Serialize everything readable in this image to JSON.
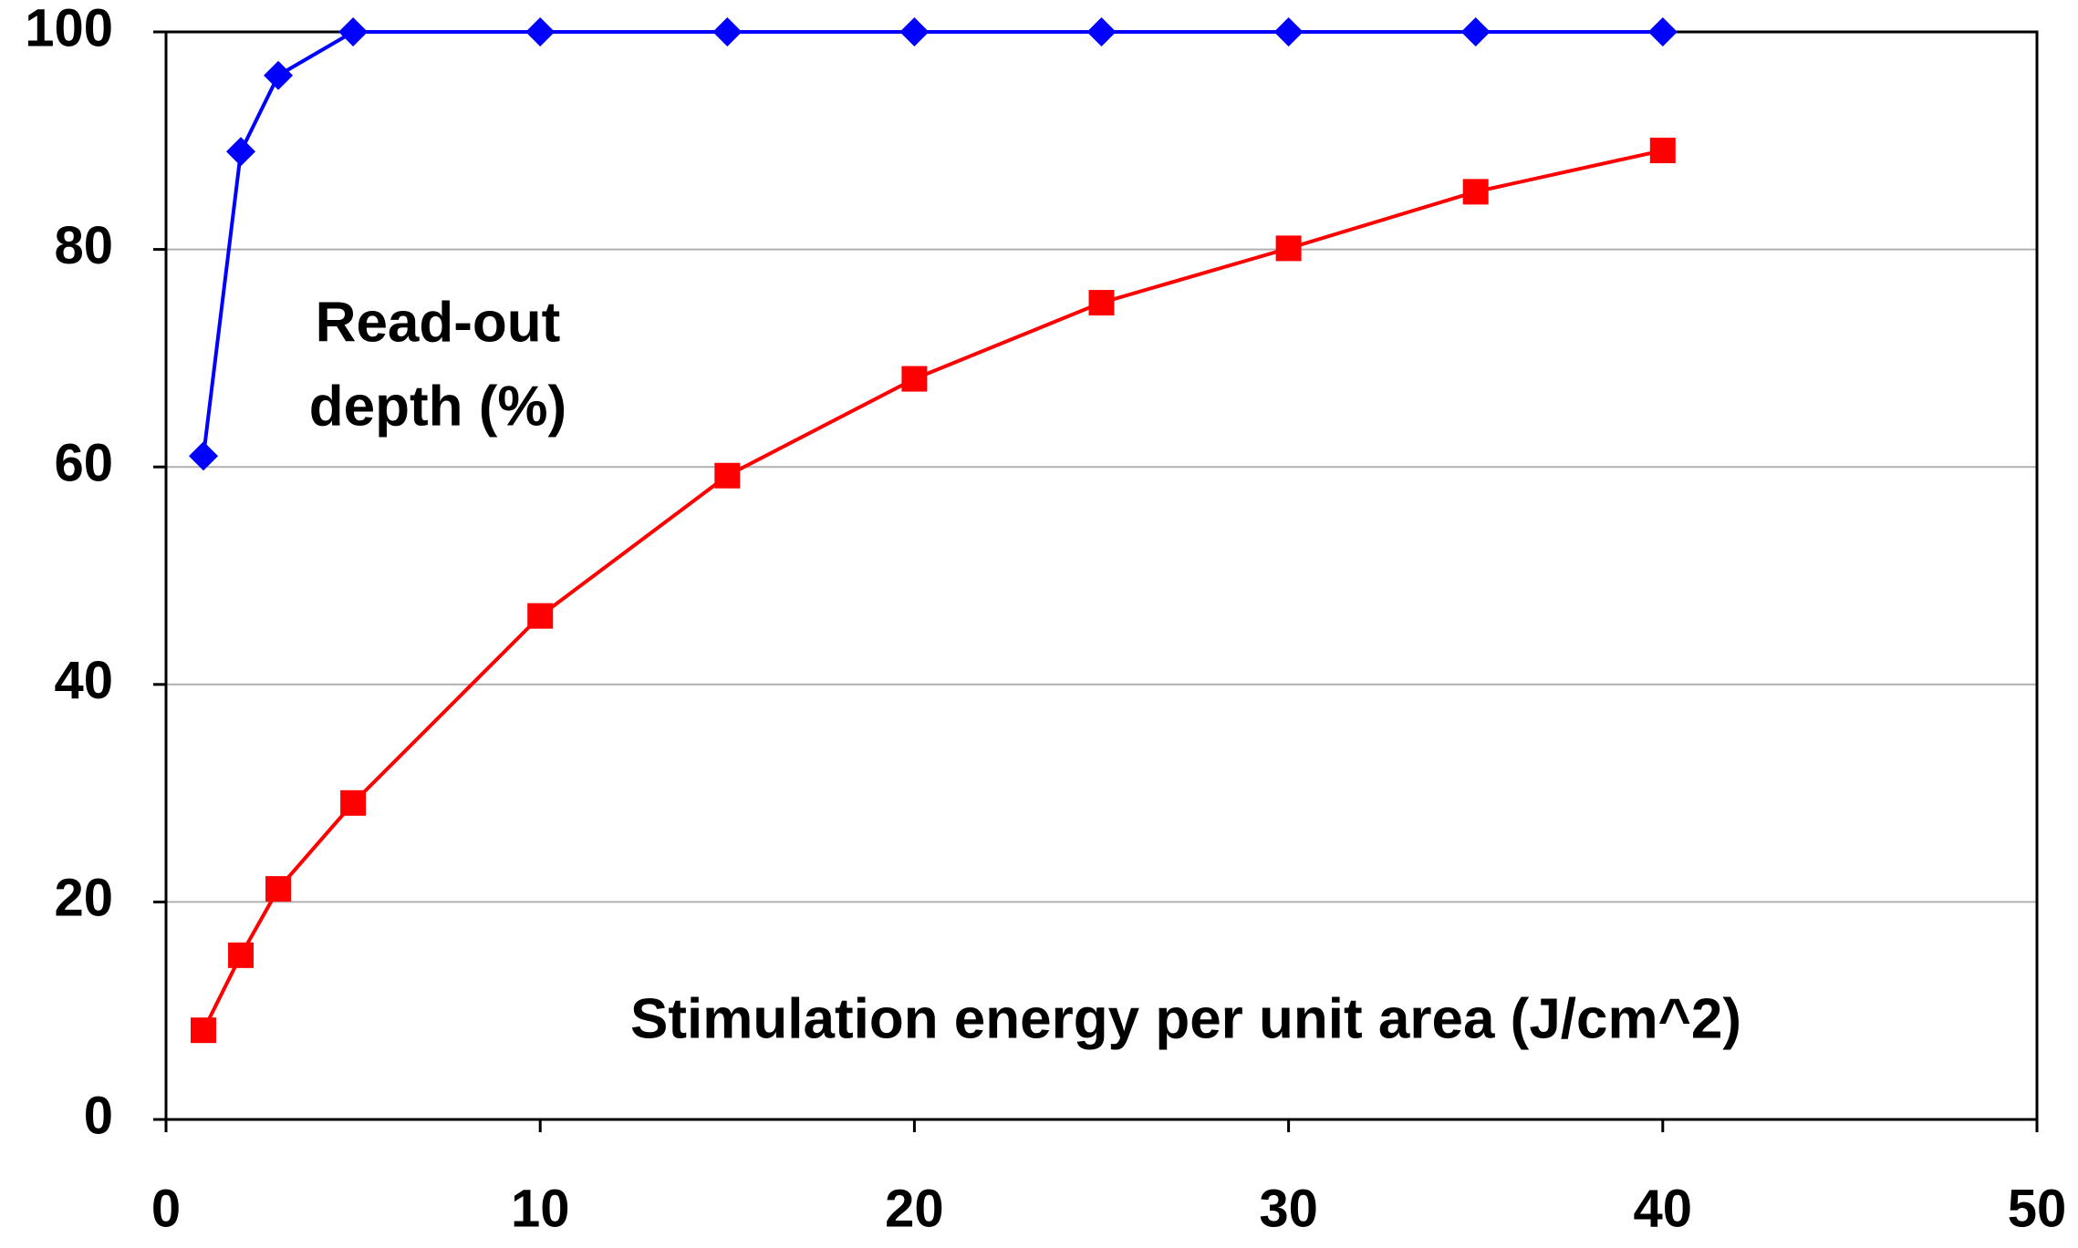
{
  "chart_data": {
    "type": "line",
    "x_label": "Stimulation energy per unit area (J/cm^2)",
    "y_label_lines": [
      "Read-out",
      "depth (%)"
    ],
    "x": [
      1,
      2,
      3,
      5,
      10,
      15,
      20,
      25,
      30,
      35,
      40
    ],
    "series": [
      {
        "color": "#0000ff",
        "marker": "diamond",
        "values": [
          61,
          89,
          96,
          100,
          100,
          100,
          100,
          100,
          100,
          100,
          100
        ]
      },
      {
        "color": "#ff0000",
        "marker": "square",
        "values": [
          8.2,
          15.1,
          21.2,
          29.1,
          46.3,
          59.2,
          68.1,
          75.1,
          80.1,
          85.3,
          89.1
        ]
      }
    ],
    "xlim": [
      0,
      50
    ],
    "xticks": [
      0,
      10,
      20,
      30,
      40,
      50
    ],
    "ylim": [
      0,
      100
    ],
    "yticks": [
      0,
      20,
      40,
      60,
      80,
      100
    ],
    "grid": true
  }
}
